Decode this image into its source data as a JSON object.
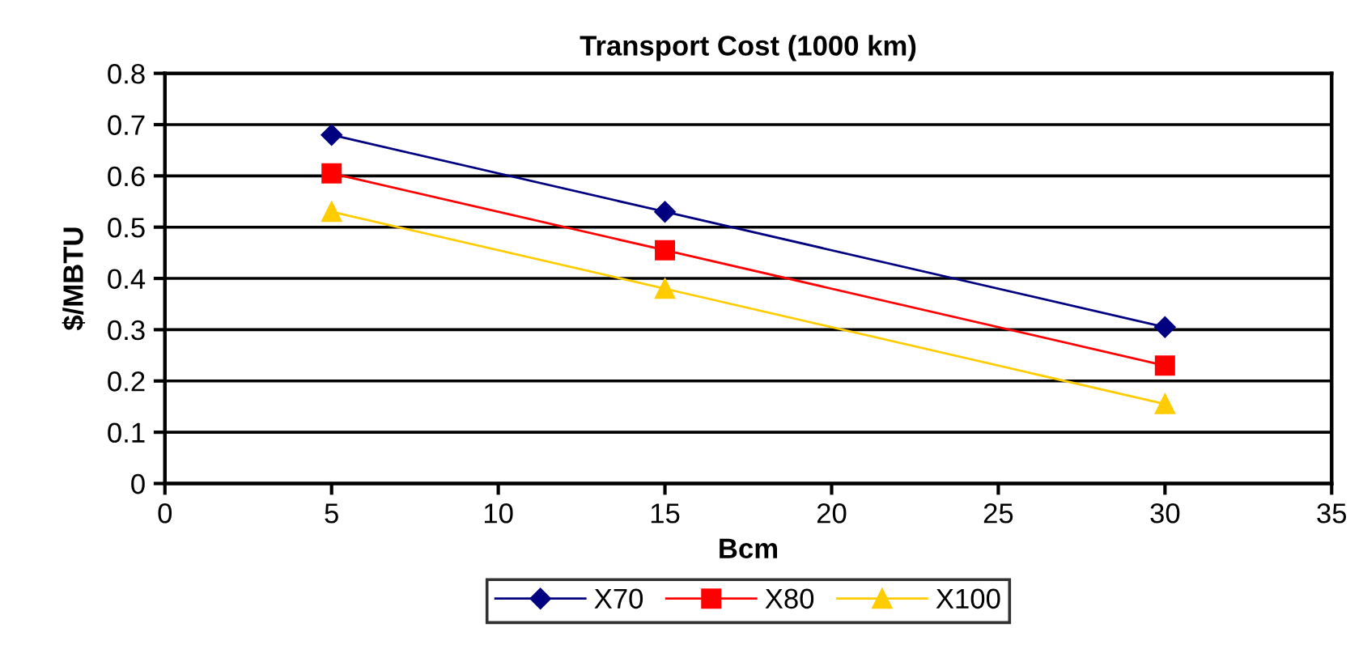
{
  "chart_data": {
    "type": "line",
    "title": "Transport Cost (1000 km)",
    "xlabel": "Bcm",
    "ylabel": "$/MBTU",
    "x": [
      5,
      15,
      30
    ],
    "series": [
      {
        "name": "X70",
        "color": "#000080",
        "marker": "diamond",
        "values": [
          0.68,
          0.53,
          0.305
        ]
      },
      {
        "name": "X80",
        "color": "#ff0000",
        "marker": "square",
        "values": [
          0.605,
          0.455,
          0.23
        ]
      },
      {
        "name": "X100",
        "color": "#ffcc00",
        "marker": "triangle",
        "values": [
          0.53,
          0.38,
          0.155
        ]
      }
    ],
    "xlim": [
      0,
      35
    ],
    "xticks": [
      0,
      5,
      10,
      15,
      20,
      25,
      30,
      35
    ],
    "ylim": [
      0,
      0.8
    ],
    "yticks": [
      0,
      0.1,
      0.2,
      0.3,
      0.4,
      0.5,
      0.6,
      0.7,
      0.8
    ],
    "grid": "y",
    "legend": "bottom",
    "line_style": "solid"
  }
}
